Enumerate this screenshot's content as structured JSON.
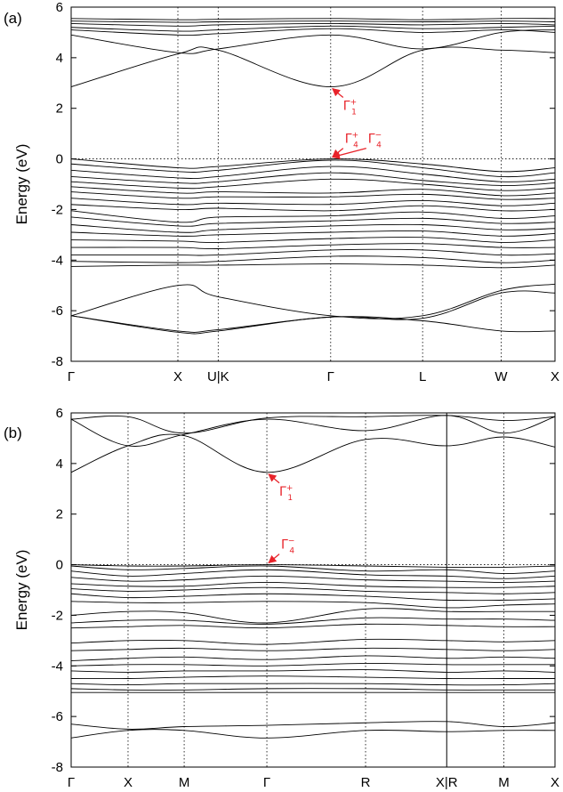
{
  "chart_data": [
    {
      "panel": "(a)",
      "type": "line",
      "ylabel": "Energy (eV)",
      "ylim": [
        -8,
        6
      ],
      "yticks": [
        -8,
        -6,
        -4,
        -2,
        0,
        2,
        4,
        6
      ],
      "kpoints": [
        {
          "label": "Γ",
          "pos": 0.0
        },
        {
          "label": "X",
          "pos": 0.2206
        },
        {
          "label": "U|K",
          "pos": 0.3039
        },
        {
          "label": "Γ",
          "pos": 0.5364
        },
        {
          "label": "L",
          "pos": 0.7264
        },
        {
          "label": "W",
          "pos": 0.8888
        },
        {
          "label": "X",
          "pos": 1.0
        }
      ],
      "vlines_solid": [],
      "annotations": [
        {
          "base": "Γ",
          "sub": "1",
          "sup": "+",
          "energy": 2.85,
          "k": 0.5364
        },
        {
          "base": "Γ",
          "sub": "4",
          "sup": "+",
          "energy": 0.0,
          "k": 0.5364
        },
        {
          "base": "Γ",
          "sub": "4",
          "sup": "−",
          "energy": 0.0,
          "k": 0.5364
        }
      ],
      "conduction_bands": [
        [
          2.85,
          4.15,
          4.3,
          2.85,
          4.3,
          4.3,
          4.2
        ],
        [
          4.9,
          4.2,
          4.35,
          4.9,
          4.35,
          5.0,
          5.1
        ],
        [
          5.1,
          4.9,
          4.95,
          5.15,
          5.0,
          5.1,
          5.0
        ],
        [
          5.2,
          5.05,
          5.1,
          5.25,
          5.15,
          5.2,
          5.25
        ],
        [
          5.35,
          5.25,
          5.3,
          5.35,
          5.3,
          5.35,
          5.3
        ],
        [
          5.45,
          5.4,
          5.42,
          5.45,
          5.42,
          5.45,
          5.42
        ],
        [
          5.55,
          5.5,
          5.52,
          5.55,
          5.5,
          5.55,
          5.55
        ]
      ],
      "valence_bands": [
        [
          0.0,
          -0.35,
          -0.3,
          0.0,
          -0.2,
          -0.5,
          -0.35
        ],
        [
          -0.2,
          -0.5,
          -0.45,
          -0.05,
          -0.35,
          -0.7,
          -0.55
        ],
        [
          -0.45,
          -0.75,
          -0.7,
          -0.3,
          -0.6,
          -0.9,
          -0.8
        ],
        [
          -0.7,
          -0.95,
          -0.9,
          -0.55,
          -0.85,
          -1.05,
          -0.95
        ],
        [
          -0.9,
          -1.15,
          -1.1,
          -0.8,
          -1.0,
          -1.25,
          -1.15
        ],
        [
          -1.1,
          -1.35,
          -1.3,
          -1.35,
          -1.2,
          -1.45,
          -1.35
        ],
        [
          -1.3,
          -1.55,
          -1.5,
          -1.5,
          -1.4,
          -1.6,
          -1.55
        ],
        [
          -1.55,
          -1.8,
          -1.75,
          -1.8,
          -1.65,
          -1.85,
          -1.75
        ],
        [
          -1.8,
          -2.0,
          -1.95,
          -2.05,
          -1.85,
          -2.05,
          -2.0
        ],
        [
          -2.05,
          -2.5,
          -2.3,
          -2.25,
          -2.1,
          -2.35,
          -2.25
        ],
        [
          -2.3,
          -2.65,
          -2.55,
          -2.45,
          -2.35,
          -2.55,
          -2.5
        ],
        [
          -2.6,
          -2.9,
          -2.8,
          -2.65,
          -2.6,
          -2.8,
          -2.75
        ],
        [
          -2.9,
          -3.05,
          -3.0,
          -2.9,
          -2.85,
          -3.05,
          -2.95
        ],
        [
          -3.2,
          -3.25,
          -3.3,
          -3.15,
          -3.1,
          -3.3,
          -3.2
        ],
        [
          -3.5,
          -3.5,
          -3.55,
          -3.4,
          -3.35,
          -3.5,
          -3.5
        ],
        [
          -3.8,
          -3.8,
          -3.8,
          -3.6,
          -3.6,
          -3.8,
          -3.75
        ],
        [
          -4.05,
          -4.1,
          -4.05,
          -3.85,
          -3.9,
          -4.1,
          -4.0
        ],
        [
          -4.25,
          -4.2,
          -4.2,
          -4.15,
          -4.2,
          -4.3,
          -4.2
        ],
        [
          -6.2,
          -5.0,
          -5.45,
          -6.2,
          -6.2,
          -5.2,
          -4.95
        ],
        [
          -6.2,
          -6.8,
          -6.75,
          -6.25,
          -6.3,
          -5.3,
          -5.3
        ],
        [
          -6.2,
          -6.85,
          -6.8,
          -6.25,
          -6.4,
          -6.8,
          -6.8
        ]
      ]
    },
    {
      "panel": "(b)",
      "type": "line",
      "ylabel": "Energy (eV)",
      "ylim": [
        -8,
        6
      ],
      "yticks": [
        -8,
        -6,
        -4,
        -2,
        0,
        2,
        4,
        6
      ],
      "kpoints": [
        {
          "label": "Γ",
          "pos": 0.0
        },
        {
          "label": "X",
          "pos": 0.1176
        },
        {
          "label": "M",
          "pos": 0.2336
        },
        {
          "label": "Γ",
          "pos": 0.4045
        },
        {
          "label": "R",
          "pos": 0.6085
        },
        {
          "label": "X|R",
          "pos": 0.7762
        },
        {
          "label": "M",
          "pos": 0.8943
        },
        {
          "label": "X",
          "pos": 1.0
        }
      ],
      "vlines_solid": [
        0.7762
      ],
      "annotations": [
        {
          "base": "Γ",
          "sub": "1",
          "sup": "+",
          "energy": 3.65,
          "k": 0.4045
        },
        {
          "base": "Γ",
          "sub": "4",
          "sup": "−",
          "energy": 0.0,
          "k": 0.4045
        }
      ],
      "conduction_bands": [
        [
          3.65,
          4.7,
          5.1,
          3.65,
          4.95,
          4.7,
          5.05,
          4.65
        ],
        [
          5.75,
          4.7,
          5.15,
          5.75,
          5.3,
          5.9,
          5.2,
          5.85
        ],
        [
          5.75,
          5.85,
          5.2,
          5.8,
          5.85,
          5.9,
          5.7,
          5.85
        ]
      ],
      "valence_bands": [
        [
          0.0,
          -0.05,
          -0.05,
          0.0,
          -0.05,
          -0.1,
          -0.1,
          -0.05
        ],
        [
          -0.05,
          -0.2,
          -0.15,
          -0.05,
          -0.25,
          -0.2,
          -0.35,
          -0.25
        ],
        [
          -0.25,
          -0.45,
          -0.35,
          -0.2,
          -0.4,
          -0.45,
          -0.55,
          -0.45
        ],
        [
          -0.5,
          -0.65,
          -0.6,
          -0.45,
          -0.6,
          -0.65,
          -0.7,
          -0.65
        ],
        [
          -0.75,
          -0.85,
          -0.85,
          -0.7,
          -0.85,
          -0.9,
          -0.9,
          -0.85
        ],
        [
          -0.95,
          -1.05,
          -1.0,
          -0.9,
          -1.05,
          -1.1,
          -1.15,
          -1.1
        ],
        [
          -1.15,
          -1.3,
          -1.25,
          -1.15,
          -1.25,
          -1.4,
          -1.4,
          -1.35
        ],
        [
          -1.45,
          -1.5,
          -1.5,
          -1.45,
          -1.5,
          -1.7,
          -1.6,
          -1.55
        ],
        [
          -2.0,
          -1.85,
          -1.9,
          -2.3,
          -1.75,
          -1.85,
          -1.85,
          -1.85
        ],
        [
          -2.3,
          -2.2,
          -2.2,
          -2.35,
          -2.1,
          -2.15,
          -2.15,
          -2.2
        ],
        [
          -2.5,
          -2.45,
          -2.4,
          -2.5,
          -2.35,
          -2.4,
          -2.45,
          -2.45
        ],
        [
          -3.1,
          -3.0,
          -3.0,
          -3.15,
          -2.95,
          -3.0,
          -3.05,
          -3.0
        ],
        [
          -3.4,
          -3.35,
          -3.3,
          -3.4,
          -3.3,
          -3.35,
          -3.4,
          -3.35
        ],
        [
          -3.8,
          -3.7,
          -3.65,
          -3.75,
          -3.6,
          -3.7,
          -3.65,
          -3.7
        ],
        [
          -4.0,
          -3.95,
          -3.95,
          -4.0,
          -3.9,
          -3.95,
          -3.95,
          -3.95
        ],
        [
          -4.2,
          -4.25,
          -4.2,
          -4.2,
          -4.15,
          -4.25,
          -4.2,
          -4.25
        ],
        [
          -4.5,
          -4.5,
          -4.45,
          -4.4,
          -4.45,
          -4.5,
          -4.5,
          -4.5
        ],
        [
          -4.7,
          -4.75,
          -4.7,
          -4.7,
          -4.7,
          -4.75,
          -4.75,
          -4.7
        ],
        [
          -4.9,
          -4.95,
          -4.95,
          -4.9,
          -4.9,
          -4.95,
          -4.95,
          -4.95
        ],
        [
          -5.05,
          -5.05,
          -5.05,
          -5.05,
          -5.05,
          -5.05,
          -5.05,
          -5.05
        ],
        [
          -6.3,
          -6.5,
          -6.4,
          -6.35,
          -6.25,
          -6.2,
          -6.4,
          -6.25
        ],
        [
          -6.85,
          -6.55,
          -6.55,
          -6.85,
          -6.55,
          -6.6,
          -6.55,
          -6.55
        ]
      ]
    }
  ]
}
